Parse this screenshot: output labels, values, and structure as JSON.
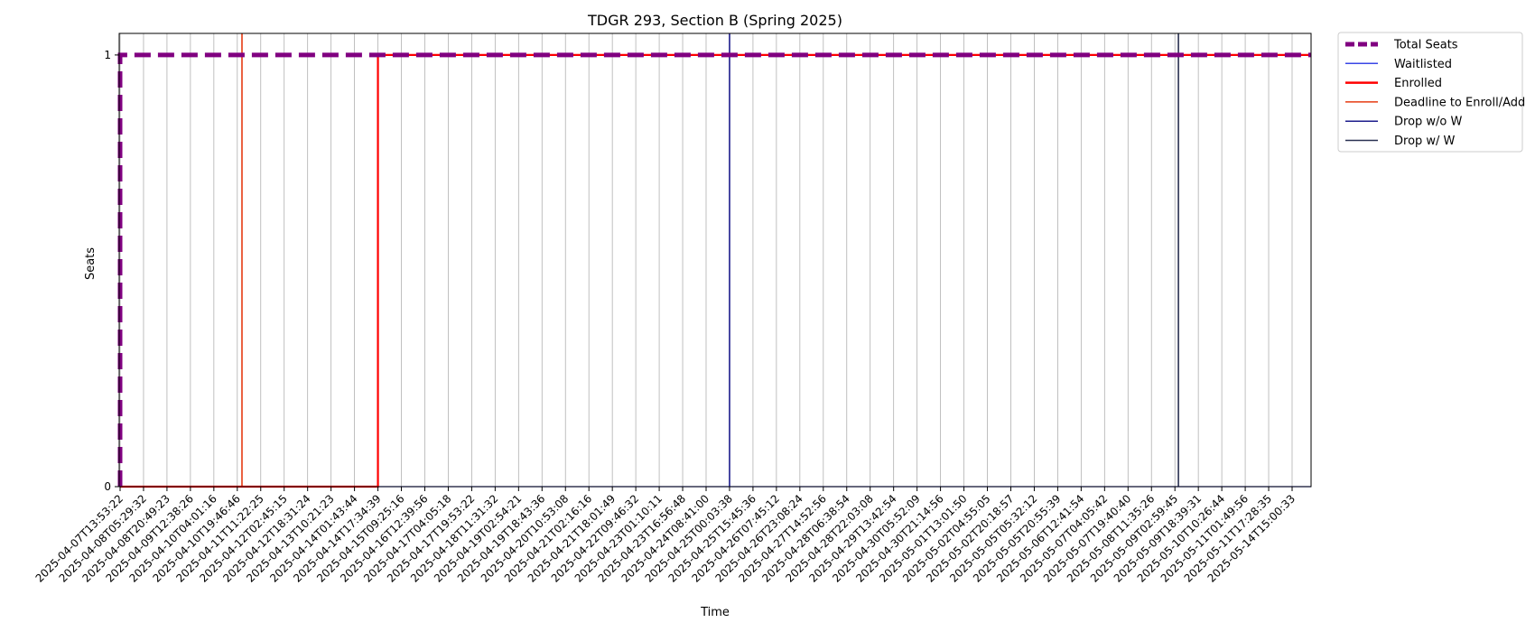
{
  "chart_data": {
    "type": "line",
    "title": "TDGR 293, Section B (Spring 2025)",
    "xlabel": "Time",
    "ylabel": "Seats",
    "ylim": [
      0,
      1.05
    ],
    "yticks": [
      0,
      1
    ],
    "grid": "vertical",
    "legend_position": "outside-top-right",
    "x_categories": [
      "2025-04-07T13:53:22",
      "2025-04-08T05:29:32",
      "2025-04-08T20:49:23",
      "2025-04-09T12:38:26",
      "2025-04-10T04:01:16",
      "2025-04-10T19:46:46",
      "2025-04-11T11:22:25",
      "2025-04-12T02:45:15",
      "2025-04-12T18:31:24",
      "2025-04-13T10:21:23",
      "2025-04-14T01:43:44",
      "2025-04-14T17:34:39",
      "2025-04-15T09:25:16",
      "2025-04-16T12:39:56",
      "2025-04-17T04:05:18",
      "2025-04-17T19:53:22",
      "2025-04-18T11:31:32",
      "2025-04-19T02:54:21",
      "2025-04-19T18:43:36",
      "2025-04-20T10:53:08",
      "2025-04-21T02:16:16",
      "2025-04-21T18:01:49",
      "2025-04-22T09:46:32",
      "2025-04-23T01:10:11",
      "2025-04-23T16:56:48",
      "2025-04-24T08:41:00",
      "2025-04-25T00:03:38",
      "2025-04-25T15:45:36",
      "2025-04-26T07:45:12",
      "2025-04-26T23:08:24",
      "2025-04-27T14:52:56",
      "2025-04-28T06:38:54",
      "2025-04-28T22:03:08",
      "2025-04-29T13:42:54",
      "2025-04-30T05:52:09",
      "2025-04-30T21:14:56",
      "2025-05-01T13:01:50",
      "2025-05-02T04:55:05",
      "2025-05-02T20:18:57",
      "2025-05-05T05:32:12",
      "2025-05-05T20:55:39",
      "2025-05-06T12:41:54",
      "2025-05-07T04:05:42",
      "2025-05-07T19:40:40",
      "2025-05-08T11:35:26",
      "2025-05-09T02:59:45",
      "2025-05-09T18:39:31",
      "2025-05-10T10:26:44",
      "2025-05-11T01:49:56",
      "2025-05-11T17:28:35",
      "2025-05-14T15:00:33"
    ],
    "series": [
      {
        "name": "Total Seats",
        "color": "#800080",
        "style": "dashed",
        "values": [
          1,
          1,
          1,
          1,
          1,
          1,
          1,
          1,
          1,
          1,
          1,
          1,
          1,
          1,
          1,
          1,
          1,
          1,
          1,
          1,
          1,
          1,
          1,
          1,
          1,
          1,
          1,
          1,
          1,
          1,
          1,
          1,
          1,
          1,
          1,
          1,
          1,
          1,
          1,
          1,
          1,
          1,
          1,
          1,
          1,
          1,
          1,
          1,
          1,
          1,
          1
        ]
      },
      {
        "name": "Waitlisted",
        "color": "#3a46e6",
        "style": "solid",
        "values": [
          0,
          0,
          0,
          0,
          0,
          0,
          0,
          0,
          0,
          0,
          0,
          0,
          0,
          0,
          0,
          0,
          0,
          0,
          0,
          0,
          0,
          0,
          0,
          0,
          0,
          0,
          0,
          0,
          0,
          0,
          0,
          0,
          0,
          0,
          0,
          0,
          0,
          0,
          0,
          0,
          0,
          0,
          0,
          0,
          0,
          0,
          0,
          0,
          0,
          0,
          0
        ]
      },
      {
        "name": "Enrolled",
        "color": "#ff0000",
        "style": "solid",
        "step": true,
        "values": [
          0,
          0,
          0,
          0,
          0,
          0,
          0,
          0,
          0,
          0,
          0,
          1,
          1,
          1,
          1,
          1,
          1,
          1,
          1,
          1,
          1,
          1,
          1,
          1,
          1,
          1,
          1,
          1,
          1,
          1,
          1,
          1,
          1,
          1,
          1,
          1,
          1,
          1,
          1,
          1,
          1,
          1,
          1,
          1,
          1,
          1,
          1,
          1,
          1,
          1,
          1
        ]
      }
    ],
    "vertical_markers": [
      {
        "name": "Deadline to Enroll/Add",
        "color": "#e63b12",
        "x_index": 5.2
      },
      {
        "name": "Drop w/o W",
        "color": "#1c1c8c",
        "x_index": 26.0
      },
      {
        "name": "Drop w/ W",
        "color": "#2a3152",
        "x_index": 45.15
      }
    ],
    "legend": [
      {
        "label": "Total Seats",
        "color": "#800080",
        "style": "dashed-thick"
      },
      {
        "label": "Waitlisted",
        "color": "#3a46e6",
        "style": "thin"
      },
      {
        "label": "Enrolled",
        "color": "#ff0000",
        "style": "thick"
      },
      {
        "label": "Deadline to Enroll/Add",
        "color": "#e63b12",
        "style": "thin"
      },
      {
        "label": "Drop w/o W",
        "color": "#1c1c8c",
        "style": "thin"
      },
      {
        "label": "Drop w/ W",
        "color": "#2a3152",
        "style": "thin"
      }
    ]
  }
}
